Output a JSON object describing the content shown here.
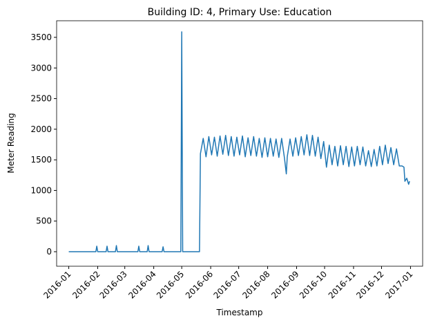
{
  "chart_data": {
    "type": "line",
    "title": "Building ID: 4, Primary Use: Education",
    "xlabel": "Timestamp",
    "ylabel": "Meter Reading",
    "color": "#1f77b4",
    "x": [
      "2016-01-01",
      "2016-01-30",
      "2016-01-31",
      "2016-02-01",
      "2016-02-10",
      "2016-02-11",
      "2016-02-12",
      "2016-02-20",
      "2016-02-21",
      "2016-02-22",
      "2016-03-15",
      "2016-03-16",
      "2016-03-17",
      "2016-03-25",
      "2016-03-26",
      "2016-03-27",
      "2016-04-10",
      "2016-04-11",
      "2016-04-12",
      "2016-04-30",
      "2016-05-01",
      "2016-05-02",
      "2016-05-20",
      "2016-05-21",
      "2016-05-24",
      "2016-05-27",
      "2016-05-30",
      "2016-06-02",
      "2016-06-05",
      "2016-06-08",
      "2016-06-11",
      "2016-06-14",
      "2016-06-17",
      "2016-06-20",
      "2016-06-23",
      "2016-06-26",
      "2016-06-29",
      "2016-07-02",
      "2016-07-05",
      "2016-07-08",
      "2016-07-11",
      "2016-07-14",
      "2016-07-17",
      "2016-07-20",
      "2016-07-23",
      "2016-07-26",
      "2016-07-29",
      "2016-08-01",
      "2016-08-04",
      "2016-08-07",
      "2016-08-10",
      "2016-08-13",
      "2016-08-16",
      "2016-08-19",
      "2016-08-21",
      "2016-08-22",
      "2016-08-25",
      "2016-08-28",
      "2016-08-31",
      "2016-09-03",
      "2016-09-06",
      "2016-09-09",
      "2016-09-12",
      "2016-09-15",
      "2016-09-18",
      "2016-09-21",
      "2016-09-24",
      "2016-09-27",
      "2016-09-30",
      "2016-10-03",
      "2016-10-06",
      "2016-10-09",
      "2016-10-12",
      "2016-10-15",
      "2016-10-18",
      "2016-10-21",
      "2016-10-24",
      "2016-10-27",
      "2016-10-30",
      "2016-11-02",
      "2016-11-05",
      "2016-11-08",
      "2016-11-11",
      "2016-11-14",
      "2016-11-17",
      "2016-11-20",
      "2016-11-23",
      "2016-11-26",
      "2016-11-29",
      "2016-12-02",
      "2016-12-05",
      "2016-12-08",
      "2016-12-11",
      "2016-12-14",
      "2016-12-17",
      "2016-12-20",
      "2016-12-23",
      "2016-12-25",
      "2016-12-26",
      "2016-12-28",
      "2016-12-30",
      "2016-12-31"
    ],
    "values": [
      0,
      0,
      90,
      0,
      0,
      90,
      0,
      0,
      100,
      0,
      0,
      90,
      0,
      0,
      100,
      0,
      0,
      80,
      0,
      0,
      3590,
      0,
      0,
      1600,
      1850,
      1550,
      1880,
      1580,
      1870,
      1560,
      1890,
      1590,
      1900,
      1570,
      1880,
      1560,
      1870,
      1580,
      1890,
      1550,
      1860,
      1570,
      1880,
      1560,
      1850,
      1540,
      1860,
      1550,
      1850,
      1560,
      1840,
      1540,
      1850,
      1530,
      1270,
      1550,
      1840,
      1560,
      1860,
      1570,
      1880,
      1580,
      1910,
      1570,
      1900,
      1560,
      1870,
      1520,
      1800,
      1380,
      1740,
      1420,
      1720,
      1400,
      1730,
      1420,
      1720,
      1390,
      1710,
      1400,
      1720,
      1420,
      1710,
      1400,
      1650,
      1390,
      1670,
      1400,
      1720,
      1420,
      1740,
      1440,
      1700,
      1420,
      1680,
      1400,
      1400,
      1380,
      1150,
      1200,
      1100,
      1150
    ],
    "xlim": [
      "2015-12-19",
      "2017-01-14"
    ],
    "xticks": [
      {
        "value": "2016-01-01",
        "label": "2016-01"
      },
      {
        "value": "2016-02-01",
        "label": "2016-02"
      },
      {
        "value": "2016-03-01",
        "label": "2016-03"
      },
      {
        "value": "2016-04-01",
        "label": "2016-04"
      },
      {
        "value": "2016-05-01",
        "label": "2016-05"
      },
      {
        "value": "2016-06-01",
        "label": "2016-06"
      },
      {
        "value": "2016-07-01",
        "label": "2016-07"
      },
      {
        "value": "2016-08-01",
        "label": "2016-08"
      },
      {
        "value": "2016-09-01",
        "label": "2016-09"
      },
      {
        "value": "2016-10-01",
        "label": "2016-10"
      },
      {
        "value": "2016-11-01",
        "label": "2016-11"
      },
      {
        "value": "2016-12-01",
        "label": "2016-12"
      },
      {
        "value": "2017-01-01",
        "label": "2017-01"
      }
    ],
    "ylim": [
      -237,
      3771
    ],
    "yticks": [
      0,
      500,
      1000,
      1500,
      2000,
      2500,
      3000,
      3500
    ]
  }
}
